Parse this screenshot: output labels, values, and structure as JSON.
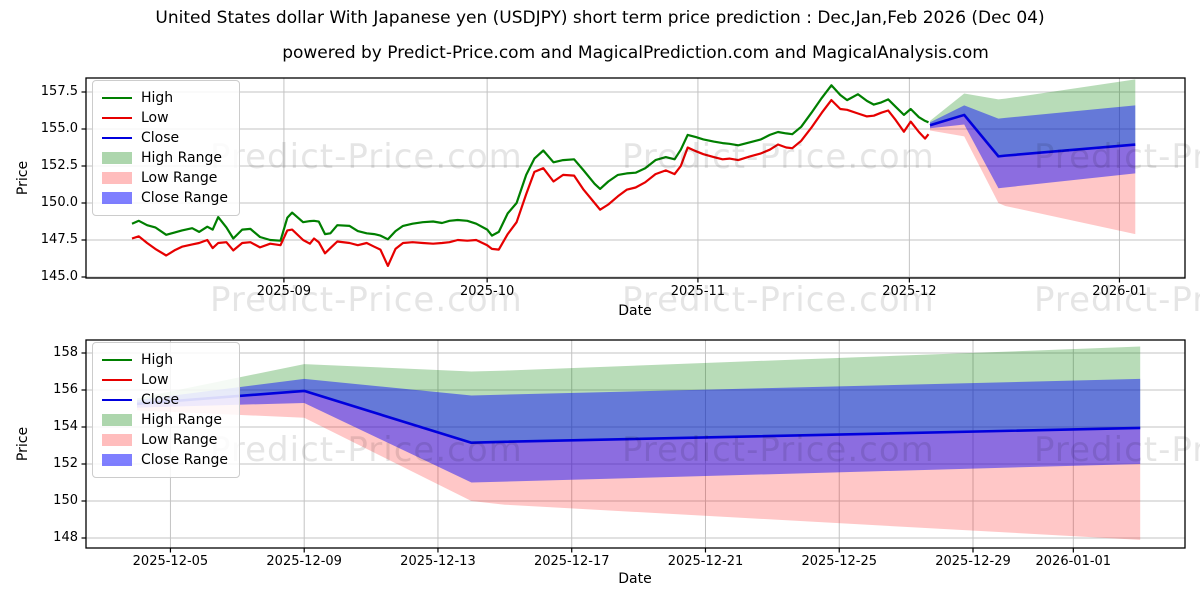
{
  "header": {
    "title": "United States dollar With Japanese yen (USDJPY) short term price prediction : Dec,Jan,Feb 2026 (Dec 04)",
    "subtitle": "powered by Predict-Price.com and MagicalPrediction.com and MagicalAnalysis.com"
  },
  "watermark": {
    "text": "Predict-Price.com"
  },
  "legend": {
    "items": [
      {
        "label": "High",
        "swatch": "line",
        "color": "#007f00"
      },
      {
        "label": "Low",
        "swatch": "line",
        "color": "#e60000"
      },
      {
        "label": "Close",
        "swatch": "line",
        "color": "#0000dd"
      },
      {
        "label": "High Range",
        "swatch": "patch",
        "color": "rgba(0,128,0,0.32)"
      },
      {
        "label": "Low Range",
        "swatch": "patch",
        "color": "rgba(255,0,0,0.26)"
      },
      {
        "label": "Close Range",
        "swatch": "patch",
        "color": "rgba(0,0,255,0.5)"
      }
    ]
  },
  "chart_data": [
    {
      "type": "line",
      "name": "history-with-prediction",
      "xlabel": "Date",
      "ylabel": "Price",
      "x_unit": "days since 2025-08-08",
      "x_ticks": [
        {
          "d": 22.2,
          "label": "2025-09"
        },
        {
          "d": 51.9,
          "label": "2025-10"
        },
        {
          "d": 82.7,
          "label": "2025-11"
        },
        {
          "d": 113.6,
          "label": "2025-12"
        },
        {
          "d": 144.3,
          "label": "2026-01"
        }
      ],
      "y_ticks": [
        "145.0",
        "147.5",
        "150.0",
        "152.5",
        "155.0",
        "157.5"
      ],
      "ylim": [
        144.9,
        158.45
      ],
      "grid": true,
      "legend_position": "upper left",
      "series_colors": {
        "high": "#007f00",
        "low": "#e60000",
        "close": "#0000dd"
      },
      "band_colors": {
        "high_range": "rgba(0,128,0,0.28)",
        "low_range": "rgba(255,0,0,0.22)",
        "close_range": "rgba(0,0,255,0.45)"
      },
      "history": {
        "columns": [
          "day",
          "high",
          "low"
        ],
        "rows": [
          [
            0,
            148.6,
            147.6
          ],
          [
            1,
            148.8,
            147.75
          ],
          [
            2.2,
            148.5,
            147.3
          ],
          [
            3.4,
            148.35,
            146.9
          ],
          [
            5,
            147.85,
            146.45
          ],
          [
            6.2,
            148.0,
            146.8
          ],
          [
            7.3,
            148.15,
            147.05
          ],
          [
            8.8,
            148.3,
            147.2
          ],
          [
            9.8,
            148.05,
            147.3
          ],
          [
            11,
            148.4,
            147.5
          ],
          [
            11.8,
            148.2,
            146.95
          ],
          [
            12.6,
            149.05,
            147.3
          ],
          [
            13.8,
            148.35,
            147.35
          ],
          [
            14.8,
            147.6,
            146.8
          ],
          [
            16.1,
            148.2,
            147.3
          ],
          [
            17.3,
            148.25,
            147.35
          ],
          [
            18.7,
            147.7,
            147.0
          ],
          [
            20.2,
            147.5,
            147.25
          ],
          [
            21.7,
            147.45,
            147.15
          ],
          [
            22.7,
            149.0,
            148.15
          ],
          [
            23.4,
            149.35,
            148.2
          ],
          [
            25,
            148.7,
            147.5
          ],
          [
            26,
            148.78,
            147.25
          ],
          [
            26.6,
            148.8,
            147.6
          ],
          [
            27.3,
            148.74,
            147.35
          ],
          [
            28.2,
            147.9,
            146.6
          ],
          [
            29,
            147.95,
            146.95
          ],
          [
            30,
            148.5,
            147.4
          ],
          [
            31.8,
            148.45,
            147.3
          ],
          [
            33,
            148.1,
            147.15
          ],
          [
            34.3,
            147.95,
            147.3
          ],
          [
            35.4,
            147.9,
            147.05
          ],
          [
            36.3,
            147.8,
            146.85
          ],
          [
            37.4,
            147.55,
            145.75
          ],
          [
            38.5,
            148.1,
            146.9
          ],
          [
            39.6,
            148.45,
            147.3
          ],
          [
            41,
            148.6,
            147.35
          ],
          [
            42.5,
            148.7,
            147.3
          ],
          [
            44,
            148.75,
            147.25
          ],
          [
            45.3,
            148.65,
            147.3
          ],
          [
            46.4,
            148.8,
            147.35
          ],
          [
            47.6,
            148.85,
            147.5
          ],
          [
            49,
            148.8,
            147.45
          ],
          [
            50.3,
            148.6,
            147.5
          ],
          [
            51.9,
            148.2,
            147.15
          ],
          [
            52.6,
            147.8,
            146.9
          ],
          [
            53.6,
            148.05,
            146.85
          ],
          [
            54.9,
            149.3,
            147.9
          ],
          [
            56.2,
            150.0,
            148.7
          ],
          [
            57.6,
            151.9,
            150.6
          ],
          [
            58.8,
            153.0,
            152.1
          ],
          [
            60.1,
            153.55,
            152.35
          ],
          [
            61.6,
            152.75,
            151.45
          ],
          [
            63,
            152.9,
            151.9
          ],
          [
            64.6,
            152.95,
            151.85
          ],
          [
            66,
            152.2,
            150.9
          ],
          [
            67.6,
            151.3,
            150.0
          ],
          [
            68.4,
            150.95,
            149.55
          ],
          [
            69.6,
            151.45,
            149.9
          ],
          [
            71,
            151.9,
            150.45
          ],
          [
            72.3,
            152.0,
            150.9
          ],
          [
            73.6,
            152.05,
            151.05
          ],
          [
            75,
            152.35,
            151.4
          ],
          [
            76.5,
            152.9,
            151.95
          ],
          [
            78,
            153.1,
            152.2
          ],
          [
            79.3,
            152.95,
            151.95
          ],
          [
            80.2,
            153.6,
            152.5
          ],
          [
            81.2,
            154.6,
            153.75
          ],
          [
            82.4,
            154.45,
            153.5
          ],
          [
            83.5,
            154.3,
            153.3
          ],
          [
            85,
            154.15,
            153.1
          ],
          [
            86.3,
            154.05,
            152.95
          ],
          [
            87.3,
            154.0,
            153.0
          ],
          [
            88.6,
            153.9,
            152.9
          ],
          [
            90.3,
            154.1,
            153.15
          ],
          [
            91.9,
            154.3,
            153.35
          ],
          [
            93.2,
            154.6,
            153.6
          ],
          [
            94.4,
            154.8,
            153.95
          ],
          [
            95.6,
            154.7,
            153.75
          ],
          [
            96.5,
            154.65,
            153.7
          ],
          [
            97.8,
            155.15,
            154.2
          ],
          [
            99.3,
            156.1,
            155.1
          ],
          [
            100.8,
            157.1,
            156.1
          ],
          [
            102.2,
            157.95,
            156.95
          ],
          [
            103.5,
            157.3,
            156.35
          ],
          [
            104.5,
            156.95,
            156.3
          ],
          [
            106.1,
            157.35,
            156.05
          ],
          [
            107.4,
            156.9,
            155.85
          ],
          [
            108.4,
            156.65,
            155.9
          ],
          [
            109.5,
            156.8,
            156.1
          ],
          [
            110.5,
            157.0,
            156.25
          ],
          [
            111.6,
            156.5,
            155.6
          ],
          [
            112.8,
            155.95,
            154.82
          ],
          [
            113.8,
            156.35,
            155.5
          ],
          [
            115,
            155.8,
            154.8
          ],
          [
            115.9,
            155.55,
            154.35
          ],
          [
            116.4,
            155.45,
            154.65
          ]
        ]
      },
      "prediction": {
        "start_date": "2025-12-04",
        "columns": [
          "day",
          "close",
          "high_range_top",
          "close_range_top",
          "close_range_bottom",
          "low_range_bottom"
        ],
        "rows": [
          [
            0,
            155.25,
            155.55,
            155.45,
            155.05,
            154.9
          ],
          [
            5,
            155.95,
            157.4,
            156.6,
            155.3,
            154.5
          ],
          [
            10,
            153.15,
            157.0,
            155.7,
            151.0,
            150.0
          ],
          [
            11,
            153.2,
            157.05,
            155.75,
            151.05,
            149.8
          ],
          [
            30,
            153.95,
            158.35,
            156.6,
            152.0,
            147.9
          ]
        ]
      }
    },
    {
      "type": "line",
      "name": "prediction-zoom",
      "xlabel": "Date",
      "ylabel": "Price",
      "x_unit": "days since 2025-12-04",
      "x_ticks": [
        {
          "d": 1,
          "label": "2025-12-05"
        },
        {
          "d": 5,
          "label": "2025-12-09"
        },
        {
          "d": 9,
          "label": "2025-12-13"
        },
        {
          "d": 13,
          "label": "2025-12-17"
        },
        {
          "d": 17,
          "label": "2025-12-21"
        },
        {
          "d": 21,
          "label": "2025-12-25"
        },
        {
          "d": 25,
          "label": "2025-12-29"
        },
        {
          "d": 28,
          "label": "2026-01-01"
        }
      ],
      "y_ticks": [
        "148",
        "150",
        "152",
        "154",
        "156",
        "158"
      ],
      "ylim": [
        147.4,
        158.7
      ],
      "grid": true,
      "legend_position": "upper left",
      "series_colors": {
        "high": "#007f00",
        "low": "#e60000",
        "close": "#0000dd"
      },
      "band_colors": {
        "high_range": "rgba(0,128,0,0.28)",
        "low_range": "rgba(255,0,0,0.22)",
        "close_range": "rgba(0,0,255,0.45)"
      },
      "prediction": {
        "start_date": "2025-12-04",
        "columns": [
          "day",
          "close",
          "high_range_top",
          "close_range_top",
          "close_range_bottom",
          "low_range_bottom"
        ],
        "rows": [
          [
            0,
            155.25,
            155.55,
            155.45,
            155.05,
            154.9
          ],
          [
            5,
            155.95,
            157.4,
            156.6,
            155.3,
            154.5
          ],
          [
            10,
            153.15,
            157.0,
            155.7,
            151.0,
            150.0
          ],
          [
            11,
            153.2,
            157.05,
            155.75,
            151.05,
            149.8
          ],
          [
            30,
            153.95,
            158.35,
            156.6,
            152.0,
            147.9
          ]
        ]
      }
    }
  ]
}
